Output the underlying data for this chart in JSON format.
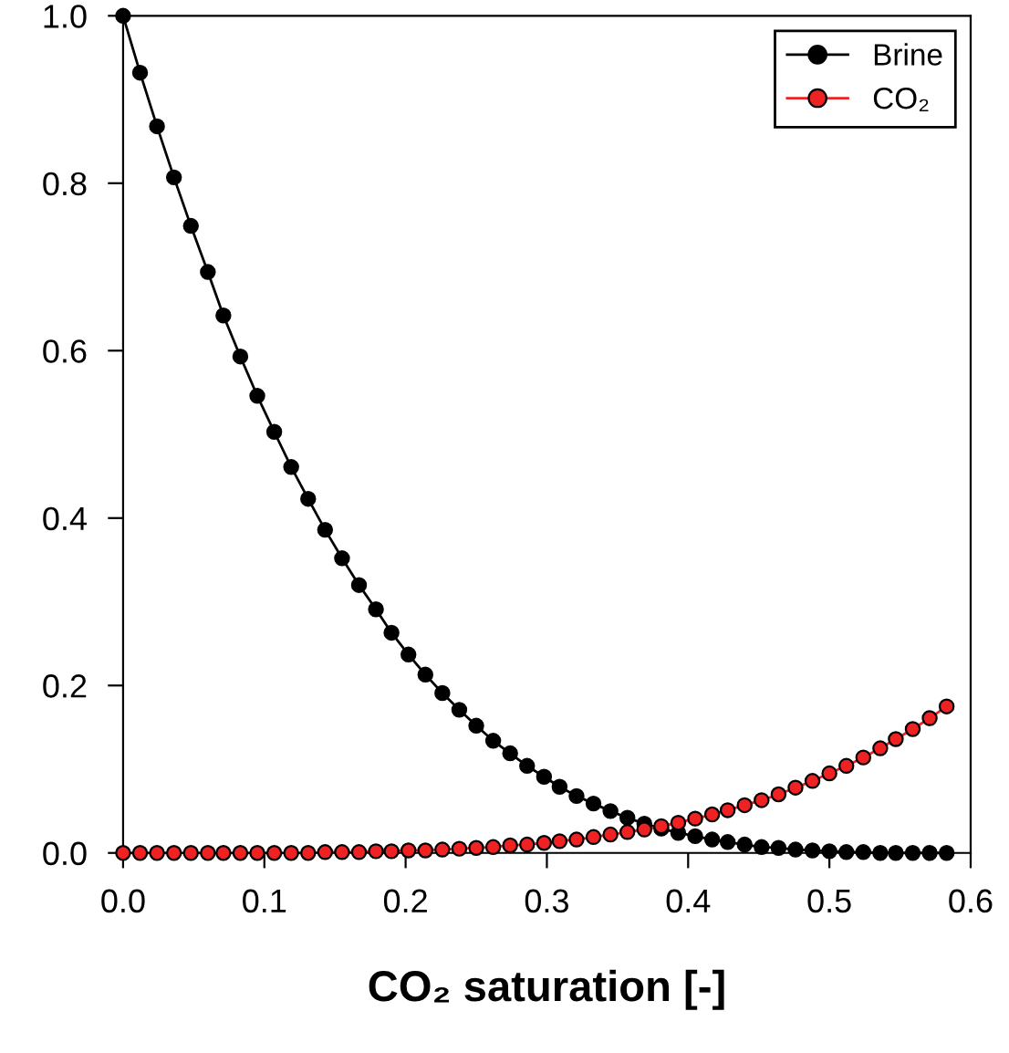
{
  "chart_data": {
    "type": "line",
    "xlabel": "CO₂ saturation [-]",
    "x": [
      0,
      0.012,
      0.024,
      0.036,
      0.048,
      0.06,
      0.071,
      0.083,
      0.095,
      0.107,
      0.119,
      0.131,
      0.143,
      0.155,
      0.167,
      0.179,
      0.19,
      0.202,
      0.214,
      0.226,
      0.238,
      0.25,
      0.262,
      0.274,
      0.286,
      0.298,
      0.309,
      0.321,
      0.333,
      0.345,
      0.357,
      0.369,
      0.381,
      0.393,
      0.405,
      0.417,
      0.428,
      0.44,
      0.452,
      0.464,
      0.476,
      0.488,
      0.5,
      0.512,
      0.524,
      0.536,
      0.547,
      0.559,
      0.571,
      0.583
    ],
    "series": [
      {
        "name": "Brine",
        "color": "#000000",
        "values": [
          1.0,
          0.932,
          0.868,
          0.807,
          0.749,
          0.694,
          0.642,
          0.593,
          0.546,
          0.503,
          0.461,
          0.423,
          0.386,
          0.352,
          0.32,
          0.291,
          0.263,
          0.237,
          0.213,
          0.191,
          0.171,
          0.152,
          0.134,
          0.119,
          0.104,
          0.091,
          0.079,
          0.068,
          0.059,
          0.05,
          0.042,
          0.035,
          0.029,
          0.024,
          0.02,
          0.016,
          0.013,
          0.01,
          0.007,
          0.006,
          0.004,
          0.003,
          0.002,
          0.001,
          0.001,
          0.0,
          0.0,
          0.0,
          0.0,
          0.0
        ]
      },
      {
        "name": "CO₂",
        "color": "#ee2222",
        "values": [
          0,
          0,
          0,
          0,
          0,
          0,
          0,
          0,
          0,
          0,
          0,
          0,
          0.001,
          0.001,
          0.001,
          0.002,
          0.002,
          0.003,
          0.003,
          0.004,
          0.005,
          0.006,
          0.007,
          0.009,
          0.01,
          0.012,
          0.014,
          0.016,
          0.019,
          0.022,
          0.025,
          0.028,
          0.032,
          0.036,
          0.041,
          0.046,
          0.051,
          0.057,
          0.063,
          0.07,
          0.078,
          0.086,
          0.095,
          0.104,
          0.114,
          0.125,
          0.136,
          0.148,
          0.161,
          0.175
        ]
      }
    ],
    "xlim": [
      0,
      0.6
    ],
    "ylim": [
      0,
      1.0
    ],
    "xticks": [
      {
        "value": 0,
        "label": "0.0"
      },
      0.1,
      0.2,
      0.3,
      0.4,
      0.5,
      0.6
    ],
    "yticks": [
      {
        "value": 0,
        "label": "0.0"
      },
      0.2,
      0.4,
      0.6,
      0.8,
      {
        "value": 1,
        "label": "1.0"
      }
    ],
    "grid": false,
    "legend": "top right",
    "marker": "circle",
    "line_style": "solid"
  }
}
